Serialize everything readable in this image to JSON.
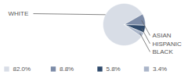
{
  "chart_data": {
    "type": "pie",
    "categories": [
      "WHITE",
      "ASIAN",
      "HISPANIC",
      "BLACK"
    ],
    "values": [
      82.0,
      8.8,
      5.8,
      3.4
    ],
    "value_labels": [
      "82.0%",
      "8.8%",
      "5.8%",
      "3.4%"
    ],
    "colors": [
      "#d8dde6",
      "#7d8ca8",
      "#2f4a6c",
      "#aab5c9"
    ],
    "legend": "bottom",
    "tick_labels": false
  }
}
